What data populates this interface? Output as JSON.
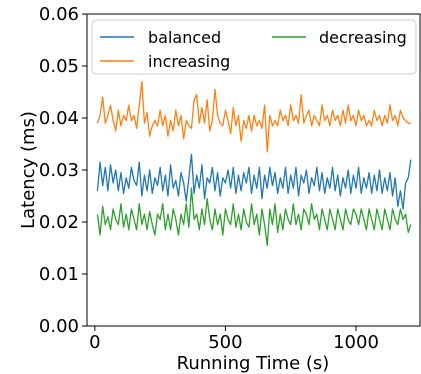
{
  "chart_data": {
    "type": "line",
    "xlabel": "Running Time (s)",
    "ylabel": "Latency (ms)",
    "xlim": [
      -30,
      1245
    ],
    "ylim": [
      0.0,
      0.06
    ],
    "x_ticks": [
      0,
      500,
      1000
    ],
    "x_tick_labels": [
      "0",
      "500",
      "1000"
    ],
    "y_ticks": [
      0.0,
      0.01,
      0.02,
      0.03,
      0.04,
      0.05,
      0.06
    ],
    "y_tick_labels": [
      "0.00",
      "0.01",
      "0.02",
      "0.03",
      "0.04",
      "0.05",
      "0.06"
    ],
    "grid": false,
    "legend": {
      "placement": "top",
      "columns": 2,
      "entries": [
        "balanced",
        "decreasing",
        "increasing"
      ]
    },
    "x": [
      10,
      20,
      30,
      40,
      50,
      60,
      70,
      80,
      90,
      100,
      110,
      120,
      130,
      140,
      150,
      160,
      170,
      180,
      190,
      200,
      210,
      220,
      230,
      240,
      250,
      260,
      270,
      280,
      290,
      300,
      310,
      320,
      330,
      340,
      350,
      360,
      370,
      380,
      390,
      400,
      410,
      420,
      430,
      440,
      450,
      460,
      470,
      480,
      490,
      500,
      510,
      520,
      530,
      540,
      550,
      560,
      570,
      580,
      590,
      600,
      610,
      620,
      630,
      640,
      650,
      660,
      670,
      680,
      690,
      700,
      710,
      720,
      730,
      740,
      750,
      760,
      770,
      780,
      790,
      800,
      810,
      820,
      830,
      840,
      850,
      860,
      870,
      880,
      890,
      900,
      910,
      920,
      930,
      940,
      950,
      960,
      970,
      980,
      990,
      1000,
      1010,
      1020,
      1030,
      1040,
      1050,
      1060,
      1070,
      1080,
      1090,
      1100,
      1110,
      1120,
      1130,
      1140,
      1150,
      1160,
      1170,
      1180,
      1190,
      1200,
      1210
    ],
    "series": [
      {
        "name": "balanced",
        "color": "#1f77b4",
        "values": [
          0.026,
          0.0315,
          0.027,
          0.0305,
          0.026,
          0.031,
          0.0275,
          0.03,
          0.026,
          0.0295,
          0.0255,
          0.0285,
          0.0265,
          0.0305,
          0.028,
          0.027,
          0.0315,
          0.025,
          0.029,
          0.026,
          0.03,
          0.0255,
          0.0285,
          0.027,
          0.0305,
          0.026,
          0.029,
          0.025,
          0.031,
          0.0265,
          0.028,
          0.025,
          0.0295,
          0.0275,
          0.024,
          0.0285,
          0.033,
          0.0255,
          0.029,
          0.0265,
          0.031,
          0.0245,
          0.0285,
          0.0275,
          0.0305,
          0.026,
          0.0295,
          0.025,
          0.0285,
          0.0275,
          0.03,
          0.0265,
          0.0305,
          0.0255,
          0.029,
          0.026,
          0.0295,
          0.0275,
          0.0305,
          0.0255,
          0.029,
          0.0265,
          0.0305,
          0.0245,
          0.029,
          0.0265,
          0.0305,
          0.027,
          0.0295,
          0.0255,
          0.0285,
          0.0265,
          0.0305,
          0.0255,
          0.029,
          0.0265,
          0.0305,
          0.025,
          0.029,
          0.0275,
          0.03,
          0.0255,
          0.0285,
          0.027,
          0.0305,
          0.026,
          0.0295,
          0.0255,
          0.0285,
          0.0265,
          0.0305,
          0.026,
          0.029,
          0.025,
          0.0285,
          0.0265,
          0.03,
          0.0255,
          0.029,
          0.0265,
          0.0305,
          0.0255,
          0.0285,
          0.0265,
          0.0295,
          0.0255,
          0.029,
          0.026,
          0.03,
          0.0255,
          0.0285,
          0.026,
          0.0295,
          0.025,
          0.0285,
          0.023,
          0.026,
          0.0225,
          0.0275,
          0.0285,
          0.032
        ]
      },
      {
        "name": "decreasing",
        "color": "#2ca02c",
        "values": [
          0.0215,
          0.0175,
          0.023,
          0.0195,
          0.021,
          0.0185,
          0.0225,
          0.0205,
          0.0195,
          0.0235,
          0.019,
          0.0215,
          0.0185,
          0.0225,
          0.0205,
          0.0185,
          0.0235,
          0.0195,
          0.0215,
          0.0185,
          0.022,
          0.0195,
          0.0175,
          0.0215,
          0.0205,
          0.0235,
          0.0185,
          0.0215,
          0.0185,
          0.0225,
          0.0205,
          0.0175,
          0.0215,
          0.0195,
          0.0235,
          0.019,
          0.0265,
          0.0205,
          0.0215,
          0.0185,
          0.0225,
          0.0195,
          0.0245,
          0.0205,
          0.0185,
          0.0225,
          0.0195,
          0.0215,
          0.0175,
          0.0225,
          0.0205,
          0.0195,
          0.0235,
          0.019,
          0.0215,
          0.0185,
          0.0225,
          0.02,
          0.019,
          0.0235,
          0.0195,
          0.0215,
          0.0175,
          0.0225,
          0.0195,
          0.0155,
          0.0225,
          0.0195,
          0.0235,
          0.018,
          0.0215,
          0.0185,
          0.0225,
          0.0205,
          0.0195,
          0.0235,
          0.0195,
          0.0215,
          0.0185,
          0.0225,
          0.0215,
          0.0195,
          0.0235,
          0.0205,
          0.0215,
          0.0185,
          0.0225,
          0.0205,
          0.0185,
          0.0225,
          0.0205,
          0.0185,
          0.0225,
          0.0205,
          0.0185,
          0.0225,
          0.0205,
          0.0195,
          0.0225,
          0.0215,
          0.0195,
          0.0225,
          0.0205,
          0.0185,
          0.0225,
          0.0205,
          0.0185,
          0.0225,
          0.0205,
          0.0185,
          0.0225,
          0.0205,
          0.0185,
          0.0225,
          0.0205,
          0.0195,
          0.0225,
          0.0205,
          0.0215,
          0.018,
          0.0195
        ]
      },
      {
        "name": "increasing",
        "color": "#ff7f0e",
        "values": [
          0.039,
          0.0405,
          0.044,
          0.039,
          0.0405,
          0.0425,
          0.0395,
          0.0375,
          0.0415,
          0.0385,
          0.0405,
          0.0395,
          0.0425,
          0.0395,
          0.0405,
          0.038,
          0.0425,
          0.047,
          0.039,
          0.041,
          0.0365,
          0.0385,
          0.0395,
          0.0385,
          0.0415,
          0.0385,
          0.0405,
          0.0365,
          0.0395,
          0.0375,
          0.0415,
          0.0385,
          0.0405,
          0.036,
          0.0395,
          0.0385,
          0.038,
          0.0435,
          0.0445,
          0.039,
          0.042,
          0.039,
          0.0435,
          0.0375,
          0.0395,
          0.0455,
          0.0405,
          0.039,
          0.0385,
          0.0415,
          0.0395,
          0.037,
          0.042,
          0.0385,
          0.0405,
          0.0355,
          0.0395,
          0.038,
          0.0405,
          0.0375,
          0.0405,
          0.0385,
          0.0395,
          0.038,
          0.0425,
          0.0335,
          0.0405,
          0.0385,
          0.0395,
          0.0385,
          0.0415,
          0.0395,
          0.0405,
          0.0385,
          0.0425,
          0.0395,
          0.0405,
          0.039,
          0.0445,
          0.039,
          0.0405,
          0.0415,
          0.0385,
          0.0405,
          0.0395,
          0.0385,
          0.0425,
          0.0395,
          0.0405,
          0.0385,
          0.0415,
          0.0395,
          0.0405,
          0.0385,
          0.0415,
          0.039,
          0.0425,
          0.0395,
          0.0405,
          0.0385,
          0.0415,
          0.0395,
          0.0405,
          0.0385,
          0.0395,
          0.0385,
          0.0415,
          0.0395,
          0.0405,
          0.0385,
          0.0405,
          0.039,
          0.0425,
          0.0395,
          0.0405,
          0.0385,
          0.0415,
          0.04,
          0.0395,
          0.039,
          0.039
        ]
      }
    ]
  }
}
